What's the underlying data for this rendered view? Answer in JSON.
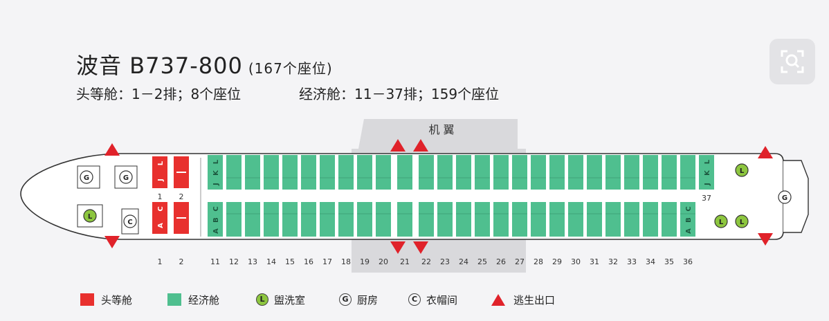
{
  "header": {
    "title": "波音 B737-800",
    "subtitle": "(167个座位)",
    "first_class_info": "头等舱：1－2排；8个座位",
    "economy_info": "经济舱：11－37排；159个座位"
  },
  "wing_label": "机 翼",
  "colors": {
    "first": "#e8302e",
    "economy": "#4fbf8f",
    "exit": "#e0222a",
    "lavatory": "#8dc63f"
  },
  "icons": {
    "zoom": "zoom-search-icon"
  },
  "seat_letters": {
    "first_top": [
      "J",
      "L"
    ],
    "first_bottom": [
      "A",
      "C"
    ],
    "economy_top": [
      "J",
      "K",
      "L"
    ],
    "economy_bottom": [
      "A",
      "B",
      "C"
    ]
  },
  "first_rows": [
    "1",
    "2"
  ],
  "economy_rows": [
    "11",
    "12",
    "13",
    "14",
    "15",
    "16",
    "17",
    "18",
    "19",
    "20",
    "21",
    "22",
    "23",
    "24",
    "25",
    "26",
    "27",
    "28",
    "29",
    "30",
    "31",
    "32",
    "33",
    "34",
    "35",
    "36",
    "37"
  ],
  "row_numbers": [
    "1",
    "2",
    "11",
    "12",
    "13",
    "14",
    "15",
    "16",
    "17",
    "18",
    "19",
    "20",
    "21",
    "22",
    "23",
    "24",
    "25",
    "26",
    "27",
    "28",
    "29",
    "30",
    "31",
    "32",
    "33",
    "34",
    "35",
    "36"
  ],
  "inplane_labels": {
    "row1": "1",
    "row2": "2",
    "row37": "37"
  },
  "facility_symbols": {
    "lavatory": "L",
    "galley": "G",
    "closet": "C"
  },
  "legend": {
    "first": "头等舱",
    "economy": "经济舱",
    "lavatory": "盥洗室",
    "galley": "厨房",
    "closet": "衣帽间",
    "exit": "逃生出口"
  }
}
